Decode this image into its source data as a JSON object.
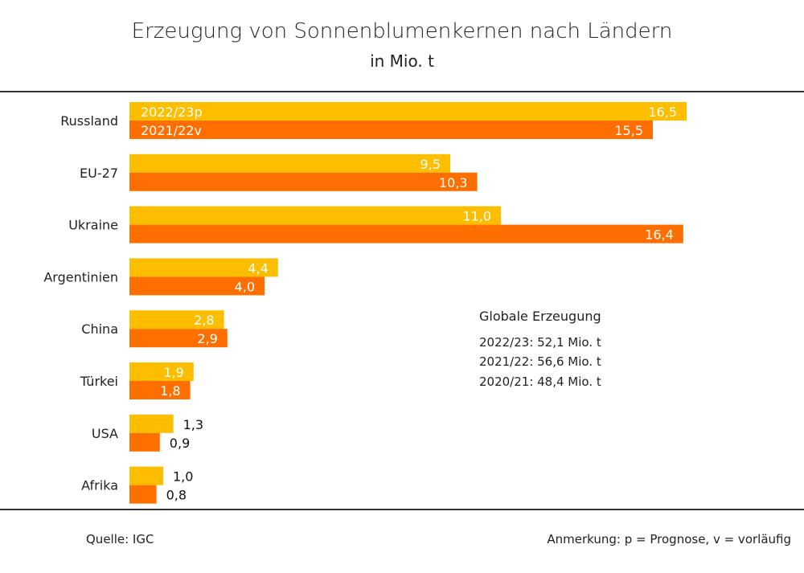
{
  "chart_data": {
    "type": "bar",
    "orientation": "horizontal",
    "title": "Erzeugung von Sonnenblumenkernen nach Ländern",
    "subtitle": "in Mio. t",
    "categories": [
      "Russland",
      "EU-27",
      "Ukraine",
      "Argentinien",
      "China",
      "Türkei",
      "USA",
      "Afrika"
    ],
    "series": [
      {
        "name": "2022/23p",
        "color": "#FDBE00",
        "values": [
          16.5,
          9.5,
          11.0,
          4.4,
          2.8,
          1.9,
          1.3,
          1.0
        ],
        "labels": [
          "16,5",
          "9,5",
          "11,0",
          "4,4",
          "2,8",
          "1,9",
          "1,3",
          "1,0"
        ]
      },
      {
        "name": "2021/22v",
        "color": "#FF6F00",
        "values": [
          15.5,
          10.3,
          16.4,
          4.0,
          2.9,
          1.8,
          0.9,
          0.8
        ],
        "labels": [
          "15,5",
          "10,3",
          "16,4",
          "4,0",
          "2,9",
          "1,8",
          "0,9",
          "0,8"
        ]
      }
    ],
    "xlim": [
      0,
      17
    ],
    "grid": false,
    "legend": "inside-first-bars"
  },
  "annotation": {
    "heading": "Globale Erzeugung",
    "lines": [
      "2022/23: 52,1 Mio. t",
      "2021/22: 56,6 Mio. t",
      "2020/21: 48,4 Mio. t"
    ]
  },
  "footer": {
    "source": "Quelle:  IGC",
    "note": "Anmerkung: p = Prognose, v = vorläufig"
  }
}
